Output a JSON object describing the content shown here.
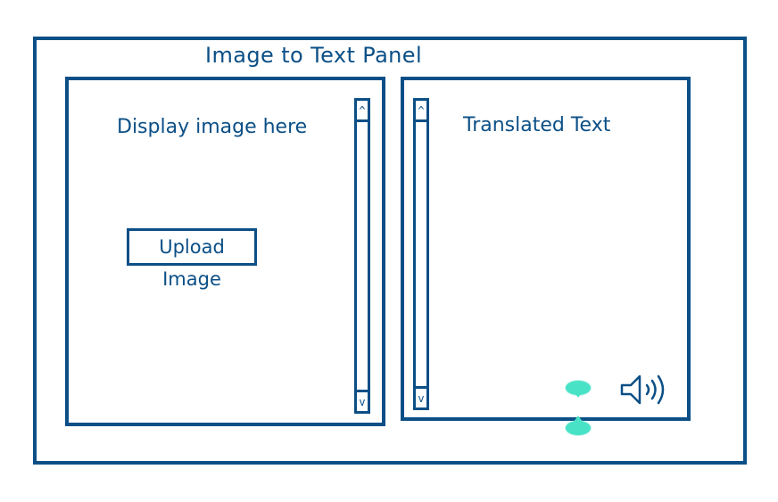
{
  "panel_title": "Image to Text Panel",
  "left_panel": {
    "caption": "Display image here",
    "upload_button_label": "Upload Image",
    "scrollbar": {
      "up_glyph": "^",
      "down_glyph": "v"
    }
  },
  "right_panel": {
    "caption": "Translated Text",
    "scrollbar": {
      "up_glyph": "^",
      "down_glyph": "v"
    },
    "speaker_icon": "speaker-icon"
  },
  "colors": {
    "stroke": "#0b4f86",
    "accent": "#48e2c7",
    "background": "#ffffff"
  }
}
